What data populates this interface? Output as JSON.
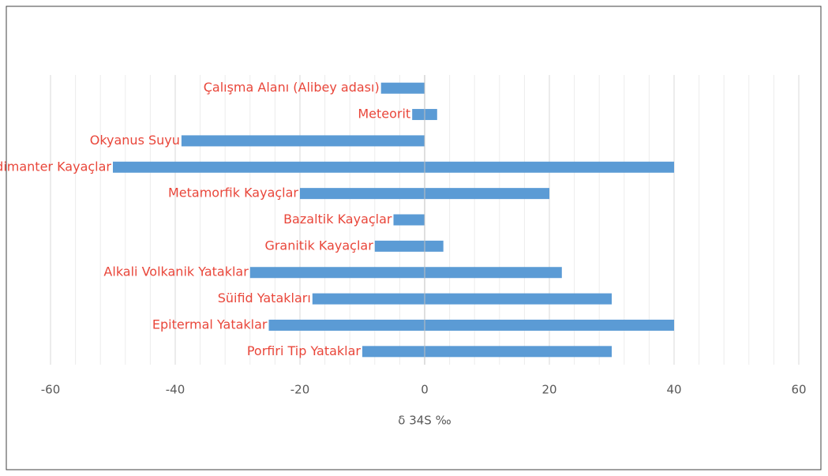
{
  "chart_data": {
    "type": "range_bar",
    "categories": [
      "Çalışma Alanı (Alibey adası)",
      "Meteorit",
      "Okyanus Suyu",
      "Sedimanter Kayaçlar",
      "Metamorfik Kayaçlar",
      "Bazaltik Kayaçlar",
      "Granitik Kayaçlar",
      "Alkali Volkanik Yataklar",
      "Süifid Yatakları",
      "Epitermal Yataklar",
      "Porfiri Tip Yataklar"
    ],
    "values": [
      [
        -7,
        0
      ],
      [
        -2,
        2
      ],
      [
        -39,
        0
      ],
      [
        -50,
        40
      ],
      [
        -20,
        20
      ],
      [
        -5,
        0
      ],
      [
        -8,
        3
      ],
      [
        -28,
        22
      ],
      [
        -18,
        30
      ],
      [
        -25,
        40
      ],
      [
        -10,
        30
      ]
    ],
    "color": "#5b9bd5",
    "x_label": "δ 34S  ‰",
    "xlim": [
      -60,
      60
    ],
    "xticks": [
      -60,
      -40,
      -20,
      0,
      20,
      40,
      60
    ],
    "xminorticks": [
      -60,
      -56,
      -52,
      -48,
      -44,
      -40,
      -36,
      -32,
      -28,
      -24,
      -20,
      -16,
      -12,
      -8,
      -4,
      0,
      4,
      8,
      12,
      16,
      20,
      24,
      28,
      32,
      36,
      40,
      44,
      48,
      52,
      56,
      60
    ],
    "grid": true
  }
}
